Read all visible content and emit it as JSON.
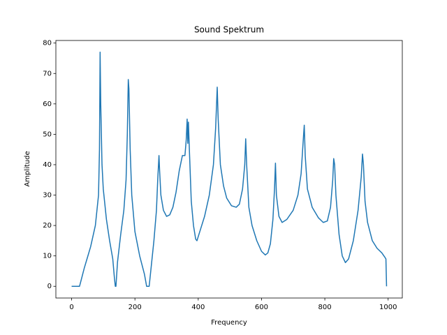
{
  "chart_data": {
    "type": "line",
    "title": "Sound Spektrum",
    "xlabel": "Frequency",
    "ylabel": "Amplitude",
    "xlim": [
      -49.75,
      1044.75
    ],
    "ylim": [
      -3.85,
      80.85
    ],
    "xticks": [
      0,
      200,
      400,
      600,
      800,
      1000
    ],
    "yticks": [
      0,
      10,
      20,
      30,
      40,
      50,
      60,
      70,
      80
    ],
    "grid": false,
    "series": [
      {
        "name": "Amplitude",
        "color": "#1f77b4",
        "x": [
          0,
          25,
          30,
          40,
          60,
          75,
          85,
          88,
          90,
          92,
          96,
          100,
          110,
          120,
          130,
          135,
          138,
          140,
          145,
          155,
          165,
          172,
          176,
          179,
          181,
          185,
          190,
          200,
          215,
          230,
          237,
          245,
          250,
          260,
          268,
          272,
          276,
          278,
          282,
          290,
          300,
          310,
          320,
          330,
          340,
          350,
          358,
          362,
          365,
          367,
          369,
          372,
          378,
          385,
          392,
          396,
          405,
          420,
          435,
          448,
          455,
          460,
          463,
          470,
          480,
          490,
          505,
          520,
          530,
          540,
          547,
          550,
          553,
          560,
          570,
          585,
          600,
          612,
          620,
          628,
          636,
          641,
          644,
          647,
          655,
          665,
          680,
          700,
          715,
          725,
          733,
          735,
          738,
          745,
          760,
          780,
          795,
          808,
          818,
          825,
          828,
          831,
          835,
          845,
          855,
          865,
          875,
          890,
          905,
          915,
          919,
          922,
          927,
          935,
          950,
          965,
          980,
          990,
          993,
          995
        ],
        "values": [
          0,
          0,
          2,
          6,
          13,
          20,
          30,
          45,
          77,
          60,
          40,
          32,
          22,
          15,
          9,
          3,
          0,
          0,
          8,
          17,
          25,
          35,
          50,
          68,
          65,
          45,
          30,
          18,
          10,
          4,
          0,
          0,
          5,
          15,
          25,
          35,
          43,
          38,
          30,
          25,
          23,
          23.5,
          26,
          31,
          38,
          43,
          43,
          48,
          55,
          47,
          54,
          45,
          28,
          20,
          15.5,
          15,
          18,
          23,
          30,
          40,
          52,
          65.5,
          55,
          40,
          33,
          29,
          26.5,
          26,
          27,
          32,
          40,
          48.5,
          40,
          26,
          20,
          15,
          11.5,
          10.3,
          11,
          14,
          22,
          32,
          40.5,
          30,
          23,
          21,
          22,
          25,
          30,
          37,
          50,
          53,
          43,
          32,
          26,
          22.5,
          21,
          21.5,
          26,
          35,
          42,
          40,
          30,
          17,
          10,
          7.8,
          9,
          15,
          25,
          36,
          43.5,
          40,
          28,
          21,
          15,
          12.5,
          11,
          9.5,
          9,
          0
        ]
      }
    ]
  }
}
